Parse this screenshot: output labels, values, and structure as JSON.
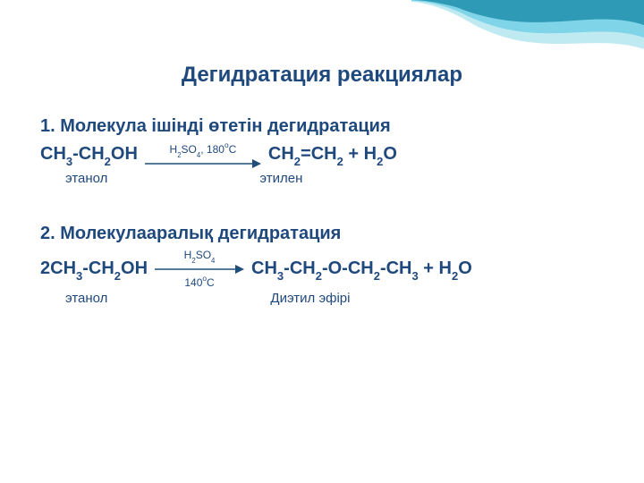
{
  "swoosh": {
    "bg": "#ffffff",
    "path1_fill": "#2e9ab5",
    "path2_fill": "#7fd4e8",
    "path3_fill": "#bfeaf2"
  },
  "title": "Дегидратация реакциялар",
  "section1": {
    "heading": "1. Молекула ішінді өтетін  дегидратация",
    "left_formula_html": "CH<span class='sub'>3</span>-CH<span class='sub'>2</span>OH",
    "arrow_top_html": "H<span class='sub'>2</span>SO<span class='sub'>4</span>, 180<span class='sup-o'>o</span>C",
    "arrow_bottom_html": "",
    "right_formula_html": "CH<span class='sub'>2</span>=CH<span class='sub'>2</span> + H<span class='sub'>2</span>O",
    "label_left": "этанол",
    "label_right": "этилен",
    "arrow_length": 130
  },
  "section2": {
    "heading": "2. Молекулааралық дегидратация",
    "left_formula_html": "2CH<span class='sub'>3</span>-CH<span class='sub'>2</span>OH",
    "arrow_top_html": "H<span class='sub'>2</span>SO<span class='sub'>4</span>",
    "arrow_bottom_html": "140<span class='sup-o'>o</span>C",
    "right_formula_html": "CH<span class='sub'>3</span>-CH<span class='sub'>2</span>-O-CH<span class='sub'>2</span>-CH<span class='sub'>3</span> + H<span class='sub'>2</span>O",
    "label_left": "этанол",
    "label_right": "Диэтил эфірі",
    "arrow_length": 100
  },
  "colors": {
    "text": "#1f497d",
    "arrow": "#1f4e79"
  }
}
